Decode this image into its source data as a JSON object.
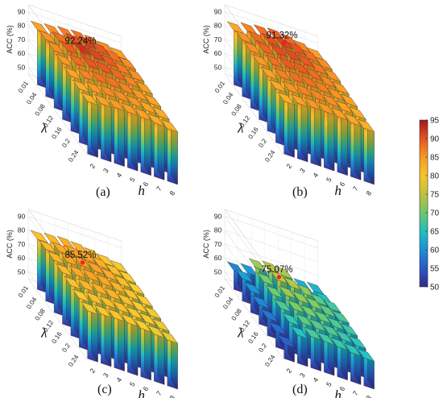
{
  "chart_data": [
    {
      "type": "bar3d",
      "panel_label": "(a)",
      "peak_annotation": "92.24%",
      "peak_value": 92.24,
      "lambda_ticks": [
        "0.01",
        "0.04",
        "0.08",
        "0.12",
        "0.16",
        "0.2",
        "0.24"
      ],
      "h_ticks": [
        "2",
        "3",
        "4",
        "5",
        "6",
        "7",
        "8"
      ],
      "zlabel": "ACC (%)",
      "ylabel": "λ",
      "xlabel": "h",
      "zticks": [
        "50",
        "60",
        "70",
        "80",
        "90"
      ],
      "zlim": [
        45,
        95
      ],
      "values": [
        [
          84.6,
          86.0,
          87.3,
          88.1,
          87.6,
          86.4,
          85.1
        ],
        [
          85.9,
          88.4,
          90.6,
          91.6,
          90.2,
          88.2,
          86.3
        ],
        [
          86.3,
          89.7,
          92.24,
          91.2,
          89.8,
          87.6,
          86.0
        ],
        [
          85.6,
          88.6,
          90.1,
          89.9,
          88.7,
          86.8,
          85.3
        ],
        [
          84.5,
          86.9,
          88.2,
          87.9,
          86.9,
          85.5,
          84.4
        ],
        [
          83.6,
          85.5,
          86.5,
          86.3,
          85.6,
          84.6,
          83.6
        ],
        [
          82.9,
          84.6,
          85.3,
          85.2,
          84.7,
          83.8,
          82.9
        ]
      ]
    },
    {
      "type": "bar3d",
      "panel_label": "(b)",
      "peak_annotation": "91.32%",
      "peak_value": 91.32,
      "lambda_ticks": [
        "0.01",
        "0.04",
        "0.08",
        "0.12",
        "0.16",
        "0.2",
        "0.24"
      ],
      "h_ticks": [
        "2",
        "3",
        "4",
        "5",
        "6",
        "7",
        "8"
      ],
      "zlabel": "ACC (%)",
      "ylabel": "λ",
      "xlabel": "h",
      "zticks": [
        "50",
        "60",
        "70",
        "80",
        "90"
      ],
      "zlim": [
        45,
        95
      ],
      "values": [
        [
          84.2,
          86.8,
          88.5,
          89.4,
          88.6,
          86.9,
          84.9
        ],
        [
          85.8,
          88.7,
          90.4,
          91.32,
          90.3,
          88.4,
          86.2
        ],
        [
          86.1,
          89.1,
          90.8,
          90.9,
          89.9,
          87.8,
          85.9
        ],
        [
          85.4,
          88.2,
          89.8,
          89.7,
          88.6,
          86.8,
          85.2
        ],
        [
          84.6,
          87.1,
          88.4,
          88.2,
          87.3,
          85.9,
          84.5
        ],
        [
          83.8,
          85.8,
          86.9,
          86.8,
          86.1,
          84.9,
          83.8
        ],
        [
          83.1,
          84.9,
          85.7,
          85.6,
          85.0,
          84.0,
          83.1
        ]
      ]
    },
    {
      "type": "bar3d",
      "panel_label": "(c)",
      "peak_annotation": "85.52%",
      "peak_value": 85.52,
      "lambda_ticks": [
        "0.01",
        "0.04",
        "0.08",
        "0.12",
        "0.16",
        "0.2",
        "0.24"
      ],
      "h_ticks": [
        "2",
        "3",
        "4",
        "5",
        "6",
        "7",
        "8"
      ],
      "zlabel": "ACC (%)",
      "ylabel": "λ",
      "xlabel": "h",
      "zticks": [
        "50",
        "60",
        "70",
        "80",
        "90"
      ],
      "zlim": [
        45,
        95
      ],
      "values": [
        [
          81.2,
          82.6,
          83.4,
          83.0,
          81.9,
          80.4,
          79.1
        ],
        [
          82.3,
          84.1,
          85.0,
          84.6,
          83.3,
          81.5,
          79.9
        ],
        [
          82.6,
          84.6,
          85.52,
          84.9,
          83.5,
          81.6,
          80.0
        ],
        [
          82.0,
          83.8,
          84.6,
          84.1,
          82.8,
          81.0,
          79.6
        ],
        [
          81.1,
          82.6,
          83.2,
          82.8,
          81.7,
          80.2,
          79.0
        ],
        [
          80.2,
          81.4,
          81.9,
          81.6,
          80.7,
          79.5,
          78.4
        ],
        [
          79.5,
          80.5,
          80.9,
          80.6,
          79.9,
          78.9,
          78.0
        ]
      ]
    },
    {
      "type": "bar3d",
      "panel_label": "(d)",
      "peak_annotation": "75.07%",
      "peak_value": 75.07,
      "lambda_ticks": [
        "0.01",
        "0.04",
        "0.08",
        "0.12",
        "0.16",
        "0.2",
        "0.24"
      ],
      "h_ticks": [
        "2",
        "3",
        "4",
        "5",
        "6",
        "7",
        "8"
      ],
      "zlabel": "ACC (%)",
      "ylabel": "λ",
      "xlabel": "h",
      "zticks": [
        "50",
        "60",
        "70",
        "80",
        "90"
      ],
      "zlim": [
        45,
        95
      ],
      "values": [
        [
          58.6,
          60.5,
          62.0,
          60.8,
          61.9,
          62.8,
          63.4
        ],
        [
          61.2,
          72.5,
          74.0,
          73.2,
          64.1,
          63.7,
          64.6
        ],
        [
          60.4,
          70.4,
          75.07,
          73.6,
          71.8,
          68.5,
          67.2
        ],
        [
          58.9,
          69.6,
          72.4,
          71.9,
          70.8,
          68.9,
          67.6
        ],
        [
          57.6,
          67.9,
          70.6,
          70.2,
          69.4,
          67.9,
          66.8
        ],
        [
          56.5,
          66.4,
          68.9,
          68.6,
          67.9,
          66.8,
          65.9
        ],
        [
          55.6,
          65.3,
          67.6,
          67.3,
          66.7,
          65.8,
          65.1
        ]
      ]
    }
  ],
  "colorbar": {
    "ticks": [
      "50",
      "55",
      "60",
      "65",
      "70",
      "75",
      "80",
      "85",
      "90",
      "95"
    ],
    "range": [
      50,
      95
    ]
  },
  "colors": [
    "#352a87",
    "#2a59c6",
    "#1b8fd3",
    "#1fbfbf",
    "#6cc86a",
    "#c3c03a",
    "#f6c52b",
    "#f69a24",
    "#e6541e",
    "#a11620"
  ]
}
